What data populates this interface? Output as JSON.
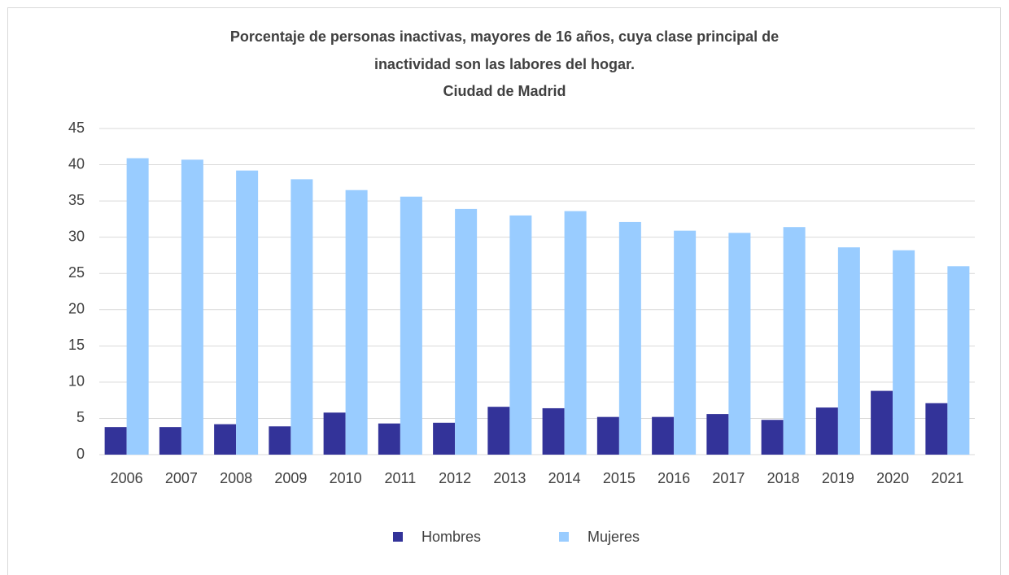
{
  "chart_data": {
    "type": "bar",
    "title": [
      "Porcentaje de personas inactivas, mayores de 16 años, cuya clase principal de",
      "inactividad son las labores del hogar."
    ],
    "subtitle": "Ciudad de Madrid",
    "categories": [
      "2006",
      "2007",
      "2008",
      "2009",
      "2010",
      "2011",
      "2012",
      "2013",
      "2014",
      "2015",
      "2016",
      "2017",
      "2018",
      "2019",
      "2020",
      "2021"
    ],
    "series": [
      {
        "name": "Hombres",
        "color": "#333399",
        "values": [
          3.8,
          3.8,
          4.2,
          3.9,
          5.8,
          4.3,
          4.4,
          6.6,
          6.4,
          5.2,
          5.2,
          5.6,
          4.8,
          6.5,
          8.8,
          7.1
        ]
      },
      {
        "name": "Mujeres",
        "color": "#99ccff",
        "values": [
          40.9,
          40.7,
          39.2,
          38.0,
          36.5,
          35.6,
          33.9,
          33.0,
          33.6,
          32.1,
          30.9,
          30.6,
          31.4,
          28.6,
          28.2,
          26.0
        ]
      }
    ],
    "ylim": [
      0,
      45
    ],
    "yticks": [
      0,
      5,
      10,
      15,
      20,
      25,
      30,
      35,
      40,
      45
    ],
    "grid": true,
    "legend": "bottom"
  }
}
